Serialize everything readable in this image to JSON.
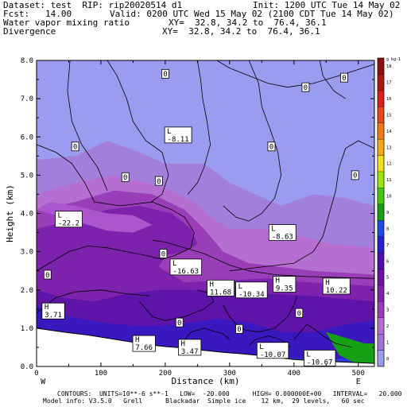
{
  "header": {
    "dataset": "Dataset: test  RIP: rip20020514 d1",
    "init": "Init: 1200 UTC Tue 14 May 02",
    "fcst": "Fcst:   14.00",
    "valid": "Valid: 0200 UTC Wed 15 May 02 (2100 CDT Tue 14 May 02)",
    "field1": "Water vapor mixing ratio",
    "xy1": "XY=  32.8, 34.2 to  76.4, 36.1",
    "field2": "Divergence",
    "xy2": "XY=  32.8, 34.2 to  76.4, 36.1"
  },
  "footer": {
    "line1": "CONTOURS:  UNITS=10**-6 s**-1   LOW=  -20.000      HIGH= 0.000000E+00   INTERVAL=   20.000",
    "line2": "Model info: V3.5.0   Grell      Blackadar  Simple ice    12 km,  29 levels,   60 sec"
  },
  "chart_data": {
    "type": "contour",
    "xlabel": "Distance (km)",
    "ylabel": "Height (km)",
    "xlim": [
      0,
      525
    ],
    "ylim": [
      0,
      8
    ],
    "x_ticks": [
      "0",
      "100",
      "200",
      "300",
      "400",
      "500"
    ],
    "y_ticks": [
      "0.0",
      "1.0",
      "2.0",
      "3.0",
      "4.0",
      "5.0",
      "6.0",
      "7.0",
      "8.0"
    ],
    "x_end_labels": {
      "left": "W",
      "right": "E"
    },
    "colorbar": {
      "unit": "g kg-1",
      "levels": [
        0,
        1,
        2,
        3,
        4,
        5,
        6,
        7,
        8,
        9,
        10,
        11,
        12,
        13,
        14,
        15,
        16,
        17,
        18
      ],
      "colors": [
        "#9a9cf0",
        "#a173d6",
        "#b56fd0",
        "#9a3db8",
        "#8222b0",
        "#6c12a8",
        "#4a10b0",
        "#2b20d0",
        "#1e4be0",
        "#16a014",
        "#43c812",
        "#9ce612",
        "#f0e020",
        "#f5a81e",
        "#f07818",
        "#e8481a",
        "#d81e1e",
        "#b01414",
        "#901010"
      ]
    },
    "moisture_bands": [
      {
        "level": 0,
        "color": "#9a9cf0"
      },
      {
        "level": 1,
        "color": "#a37fdc"
      },
      {
        "level": 2,
        "color": "#b56fd0"
      },
      {
        "level": 3,
        "color": "#9a3db8"
      },
      {
        "level": 4,
        "color": "#7c22ac"
      },
      {
        "level": 5,
        "color": "#5e14a8"
      },
      {
        "level": 6,
        "color": "#3a18c0"
      },
      {
        "level": 7,
        "color": "#2b3be0"
      }
    ],
    "contour_labels": [
      {
        "text": "0",
        "x": 200,
        "y": 7.65
      },
      {
        "text": "0",
        "x": 478,
        "y": 7.55
      },
      {
        "text": "0",
        "x": 418,
        "y": 7.3
      },
      {
        "text": "0",
        "x": 60,
        "y": 5.75
      },
      {
        "text": "0",
        "x": 365,
        "y": 5.75
      },
      {
        "text": "0",
        "x": 138,
        "y": 4.95
      },
      {
        "text": "0",
        "x": 190,
        "y": 4.85
      },
      {
        "text": "0",
        "x": 495,
        "y": 5.0
      },
      {
        "text": "0",
        "x": 197,
        "y": 2.95
      },
      {
        "text": "0",
        "x": 17,
        "y": 2.4
      },
      {
        "text": "0",
        "x": 222,
        "y": 1.15
      },
      {
        "text": "0",
        "x": 315,
        "y": 0.98
      },
      {
        "text": "0",
        "x": 408,
        "y": 1.4
      }
    ],
    "extrema": [
      {
        "type": "L",
        "value": "-8.11",
        "x": 220,
        "y": 6.05
      },
      {
        "type": "L",
        "value": "-22.2",
        "x": 50,
        "y": 3.85
      },
      {
        "type": "L",
        "value": "-8.63",
        "x": 382,
        "y": 3.5
      },
      {
        "type": "L",
        "value": "-16.63",
        "x": 232,
        "y": 2.6
      },
      {
        "type": "H",
        "value": "11.68",
        "x": 286,
        "y": 2.05
      },
      {
        "type": "L",
        "value": "-10.34",
        "x": 334,
        "y": 2.0
      },
      {
        "type": "H",
        "value": "9.35",
        "x": 385,
        "y": 2.15
      },
      {
        "type": "H",
        "value": "10.22",
        "x": 466,
        "y": 2.1
      },
      {
        "type": "H",
        "value": "3.71",
        "x": 26,
        "y": 1.45
      },
      {
        "type": "H",
        "value": "7.66",
        "x": 167,
        "y": 0.6
      },
      {
        "type": "H",
        "value": "3.47",
        "x": 238,
        "y": 0.5
      },
      {
        "type": "L",
        "value": "-10.07",
        "x": 367,
        "y": 0.42
      },
      {
        "type": "L",
        "value": "-10.67",
        "x": 440,
        "y": 0.22
      }
    ]
  }
}
